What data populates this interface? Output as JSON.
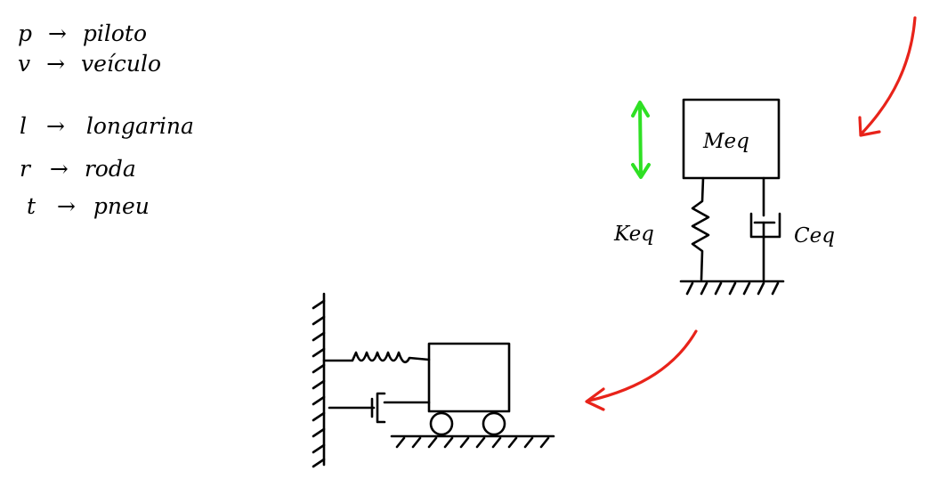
{
  "legend": [
    {
      "key": "p",
      "arrow": "→",
      "word": "piloto"
    },
    {
      "key": "v",
      "arrow": "→",
      "word": "veículo"
    },
    {
      "key": "l",
      "arrow": "→",
      "word": "longarina"
    },
    {
      "key": "r",
      "arrow": "→",
      "word": "roda"
    },
    {
      "key": "t",
      "arrow": "→",
      "word": "pneu"
    }
  ],
  "upper_model": {
    "mass_label": "Meq",
    "spring_label": "Keq",
    "damper_label": "Ceq"
  },
  "colors": {
    "ink": "#000000",
    "red_arrow": "#e8231a",
    "green_arrow": "#2fe024",
    "background": "#ffffff"
  }
}
